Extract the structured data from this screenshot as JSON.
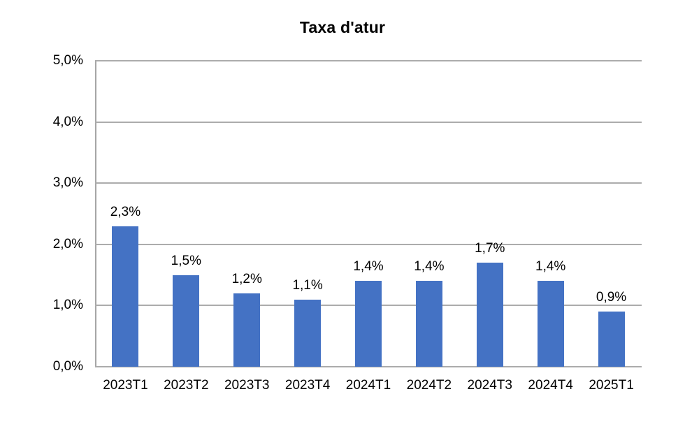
{
  "chart_data": {
    "type": "bar",
    "title": "Taxa d'atur",
    "categories": [
      "2023T1",
      "2023T2",
      "2023T3",
      "2023T4",
      "2024T1",
      "2024T2",
      "2024T3",
      "2024T4",
      "2025T1"
    ],
    "values": [
      2.3,
      1.5,
      1.2,
      1.1,
      1.4,
      1.4,
      1.7,
      1.4,
      0.9
    ],
    "value_labels": [
      "2,3%",
      "1,5%",
      "1,2%",
      "1,1%",
      "1,4%",
      "1,4%",
      "1,7%",
      "1,4%",
      "0,9%"
    ],
    "xlabel": "",
    "ylabel": "",
    "ylim": [
      0,
      5
    ],
    "y_tick_labels": [
      "0,0%",
      "1,0%",
      "2,0%",
      "3,0%",
      "4,0%",
      "5,0%"
    ],
    "grid": true,
    "legend": false,
    "colors": {
      "bar": "#4472C4",
      "gridline": "#ACACAC",
      "axis_line": "#A6A6A6",
      "text": "#000000",
      "background": "#FFFFFF"
    }
  }
}
